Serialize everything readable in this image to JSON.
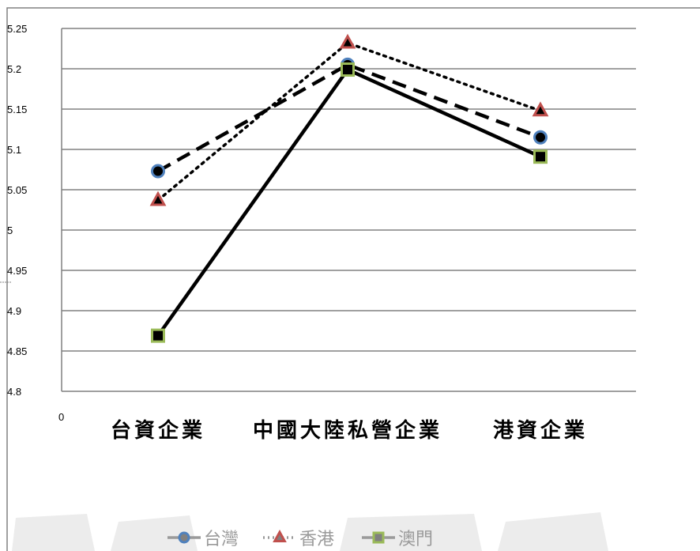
{
  "chart_data": {
    "type": "line",
    "categories": [
      "台資企業",
      "中國大陸私營企業",
      "港資企業"
    ],
    "series": [
      {
        "name": "台灣",
        "values": [
          5.073,
          5.205,
          5.115
        ],
        "line_style": "dashed",
        "marker": "circle",
        "marker_fill": "#000000",
        "marker_edge": "#4f81bd"
      },
      {
        "name": "香港",
        "values": [
          5.037,
          5.232,
          5.148
        ],
        "line_style": "dotted",
        "marker": "triangle",
        "marker_fill": "#000000",
        "marker_edge": "#c0504d"
      },
      {
        "name": "澳門",
        "values": [
          4.869,
          5.199,
          5.091
        ],
        "line_style": "solid",
        "marker": "square",
        "marker_fill": "#000000",
        "marker_edge": "#9bbb59"
      }
    ],
    "ylim": [
      4.8,
      5.25
    ],
    "yticks": [
      "5.25",
      "5.2",
      "5.15",
      "5.1",
      "5.05",
      "5",
      "4.95",
      "4.9",
      "4.85",
      "4.8"
    ],
    "x_origin_label": "0",
    "grid": true,
    "legend": "bottom"
  }
}
